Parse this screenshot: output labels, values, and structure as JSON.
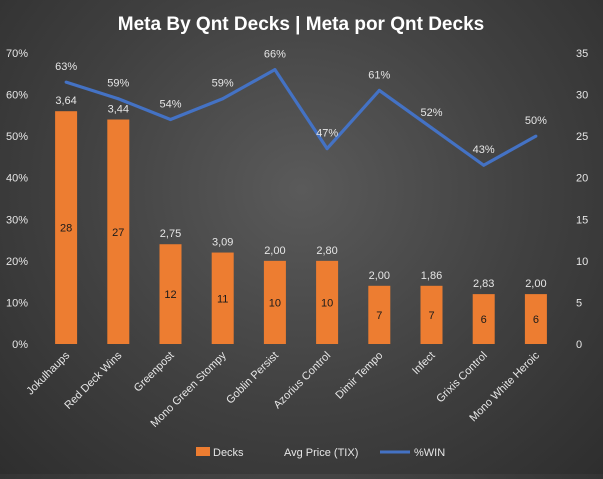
{
  "chart_data": {
    "type": "bar",
    "title": "Meta By Qnt Decks | Meta por Qnt Decks",
    "categories": [
      "Jokulhaups",
      "Red Deck Wins",
      "Greenpost",
      "Mono Green Stompy",
      "Goblin Persist",
      "Azorius Control",
      "Dimir Tempo",
      "Infect",
      "Grixis Control",
      "Mono White Heroic"
    ],
    "series": [
      {
        "name": "Decks",
        "type": "bar",
        "axis": "right",
        "values": [
          28,
          27,
          12,
          11,
          10,
          10,
          7,
          7,
          6,
          6
        ],
        "color": "#ED7D31"
      },
      {
        "name": "Avg Price (TIX)",
        "type": "label",
        "values": [
          "3,64",
          "3,44",
          "2,75",
          "3,09",
          "2,00",
          "2,80",
          "2,00",
          "1,86",
          "2,83",
          "2,00"
        ]
      },
      {
        "name": "%WIN",
        "type": "line",
        "axis": "left",
        "values": [
          63,
          59,
          54,
          59,
          66,
          47,
          61,
          52,
          43,
          50
        ],
        "labels": [
          "63%",
          "59%",
          "54%",
          "59%",
          "66%",
          "47%",
          "61%",
          "52%",
          "43%",
          "50%"
        ],
        "color": "#4472C4"
      }
    ],
    "left_axis": {
      "min": 0,
      "max": 70,
      "step": 10,
      "tick_labels": [
        "0%",
        "10%",
        "20%",
        "30%",
        "40%",
        "50%",
        "60%",
        "70%"
      ]
    },
    "right_axis": {
      "min": 0,
      "max": 35,
      "step": 5,
      "tick_labels": [
        "0",
        "5",
        "10",
        "15",
        "20",
        "25",
        "30",
        "35"
      ]
    },
    "legend_position": "bottom",
    "grid": false
  }
}
